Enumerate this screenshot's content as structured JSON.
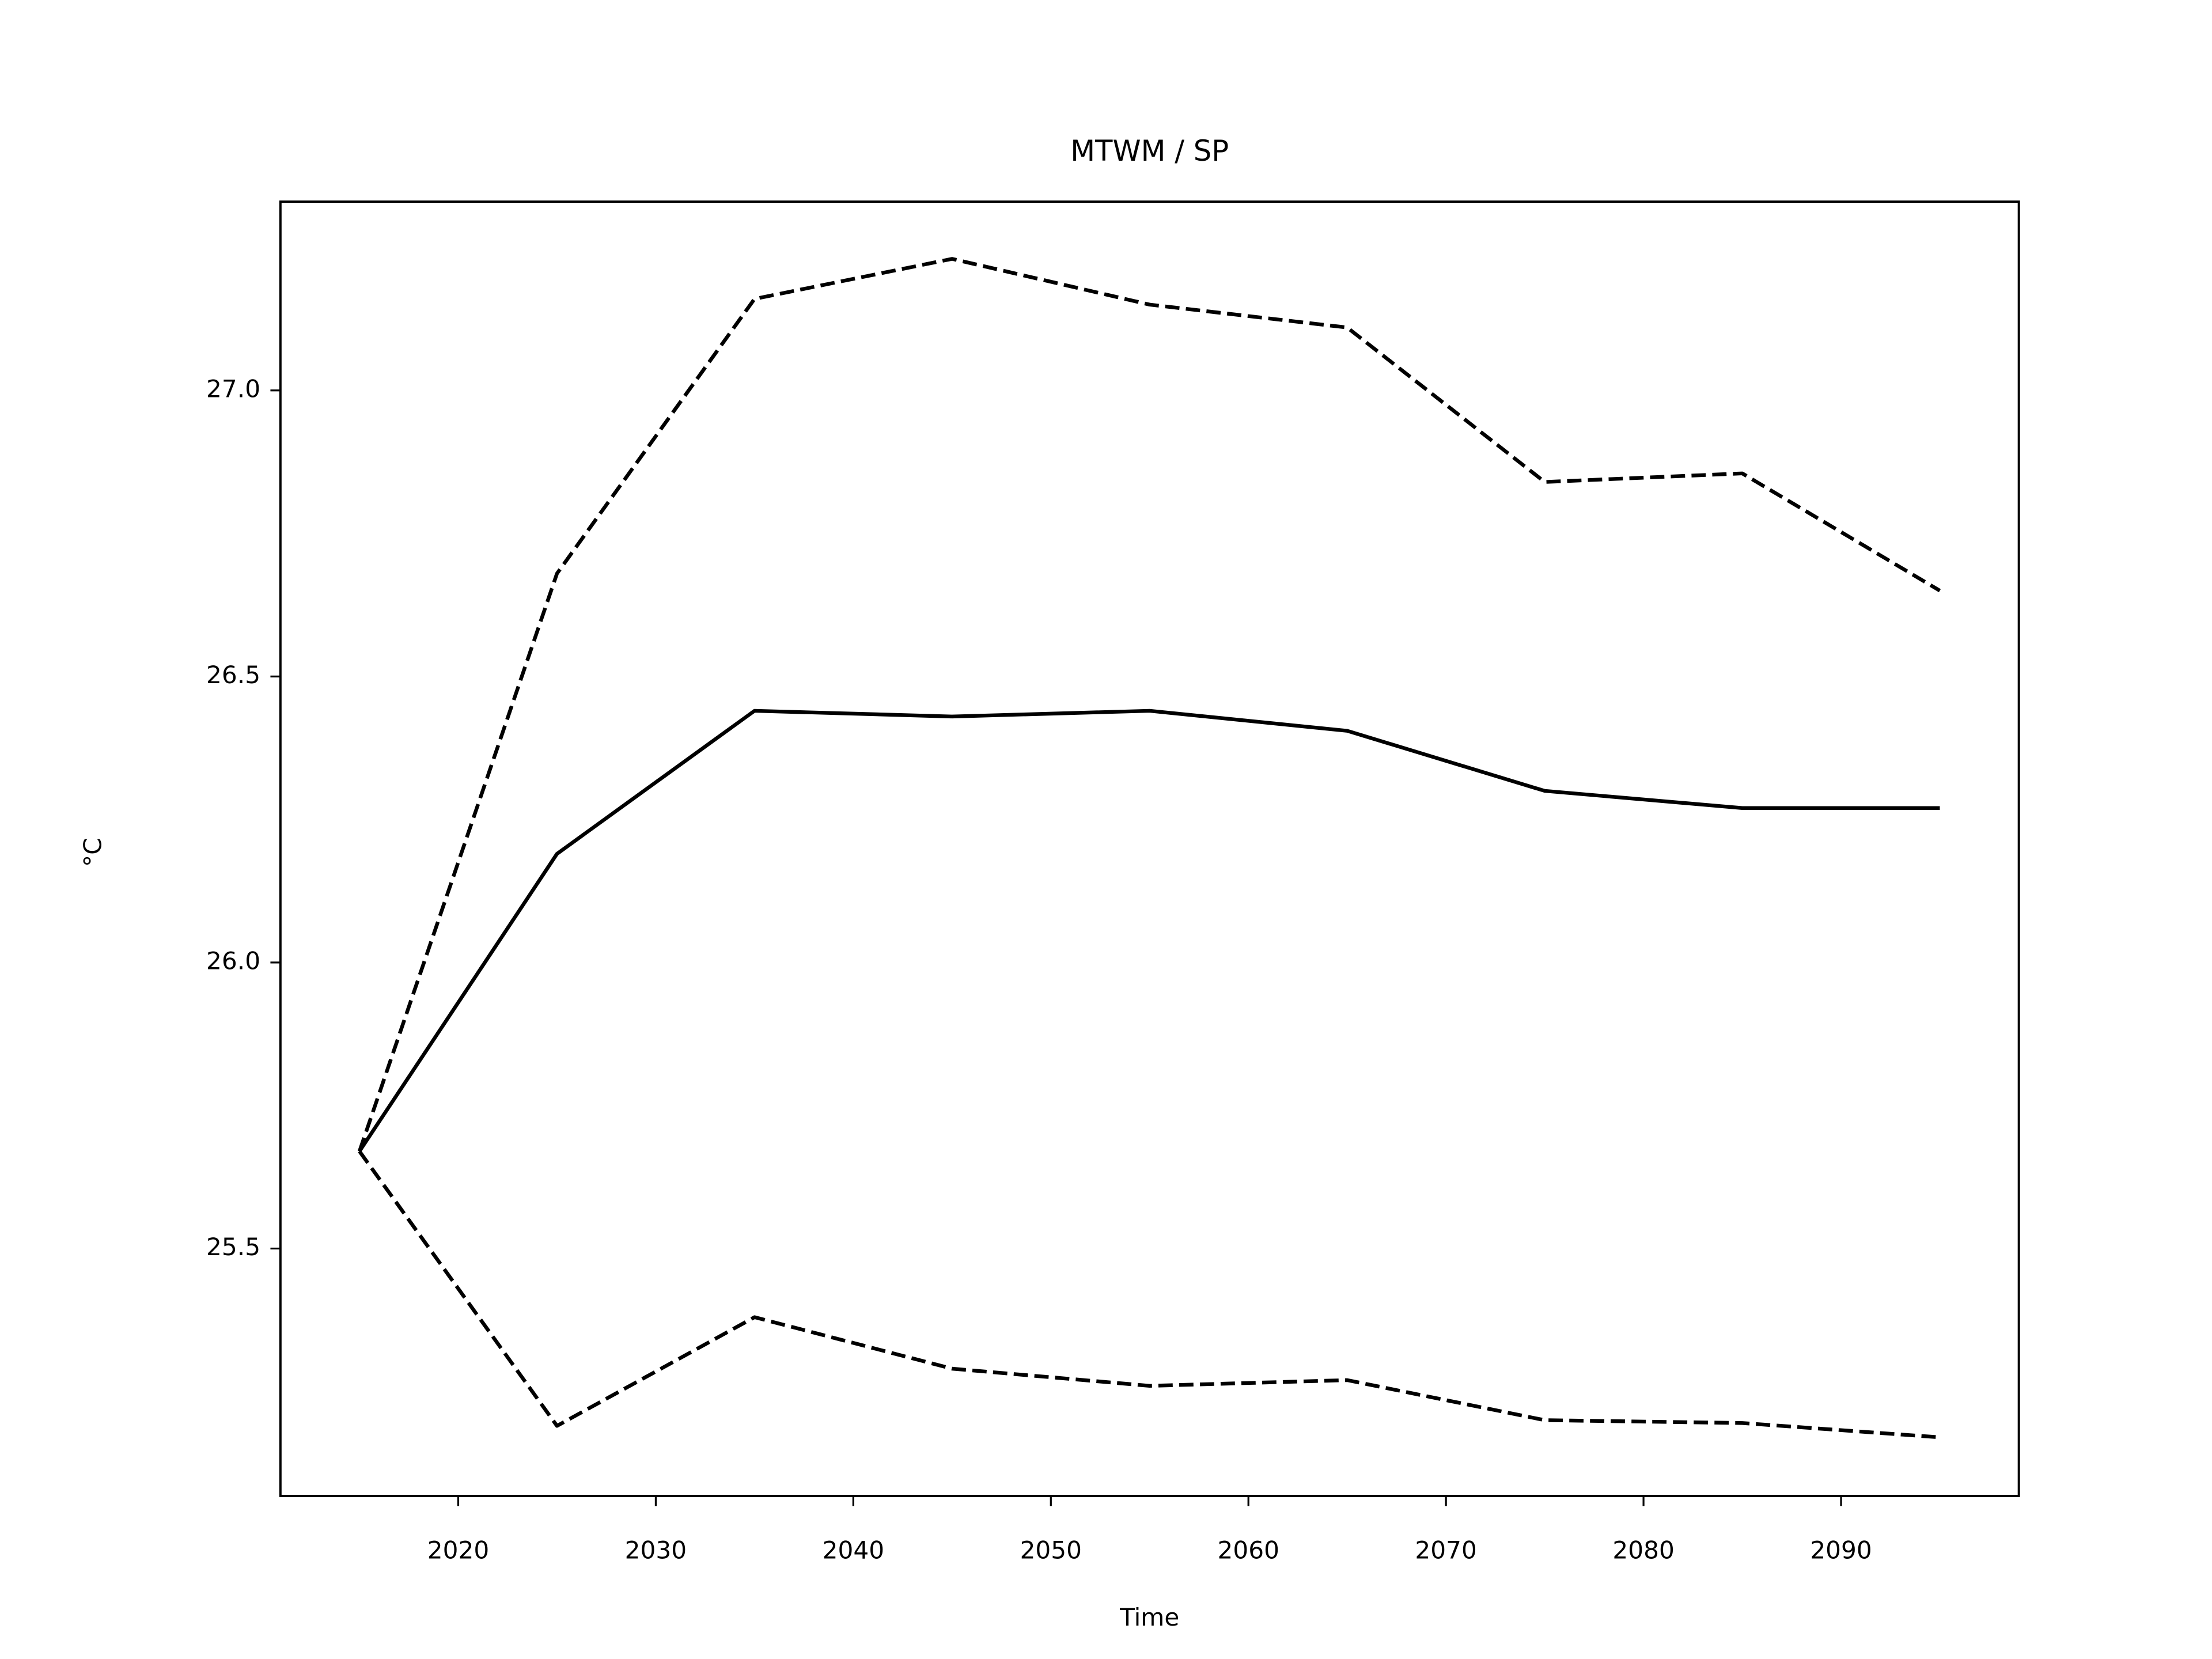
{
  "chart_data": {
    "type": "line",
    "title": "MTWM / SP",
    "xlabel": "Time",
    "ylabel": "°C",
    "x": [
      2015,
      2025,
      2035,
      2045,
      2055,
      2065,
      2075,
      2085,
      2095
    ],
    "series": [
      {
        "color": "#000000",
        "linestyle": "solid",
        "values": [
          25.67,
          26.19,
          26.44,
          26.43,
          26.44,
          26.405,
          26.3,
          26.27,
          26.27
        ]
      },
      {
        "color": "#000000",
        "linestyle": "dashed",
        "values": [
          25.67,
          26.68,
          27.16,
          27.23,
          27.15,
          27.11,
          26.84,
          26.855,
          26.65
        ]
      },
      {
        "color": "#000000",
        "linestyle": "dashed",
        "values": [
          25.67,
          25.19,
          25.38,
          25.29,
          25.26,
          25.27,
          25.2,
          25.195,
          25.17
        ]
      }
    ],
    "xlim": [
      2011,
      2099
    ],
    "xticks": [
      2020,
      2030,
      2040,
      2050,
      2060,
      2070,
      2080,
      2090
    ],
    "ylim": [
      25.0675,
      27.33
    ],
    "yticks": [
      {
        "value": 25.5,
        "label": "25.5"
      },
      {
        "value": 26,
        "label": "26.0"
      },
      {
        "value": 26.5,
        "label": "26.5"
      },
      {
        "value": 27,
        "label": "27.0"
      }
    ],
    "grid": false
  }
}
